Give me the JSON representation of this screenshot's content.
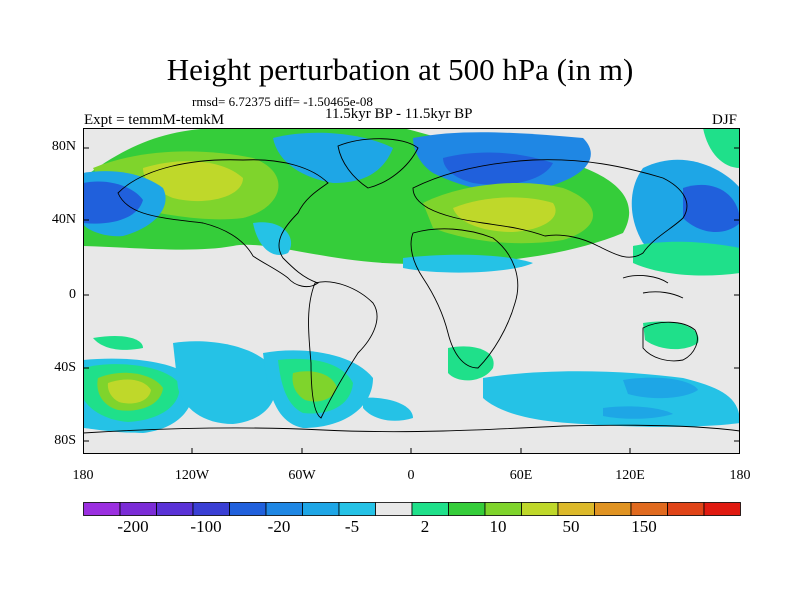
{
  "title": "Height perturbation at 500 hPa (in m)",
  "stats": "rmsd= 6.72375 diff= -1.50465e-08",
  "experiment": "Expt = temmM-temkM",
  "period": "11.5kyr BP - 11.5kyr BP",
  "season": "DJF",
  "map": {
    "projection": "cylindrical equidistant",
    "background_color": "#e8e8e8",
    "coastline_color": "#000000",
    "lat_ticks": [
      "80N",
      "40N",
      "0",
      "40S",
      "80S"
    ],
    "lon_ticks": [
      "180",
      "120W",
      "60W",
      "0",
      "60E",
      "120E",
      "180"
    ]
  },
  "colorbar": {
    "colors": [
      "#9b2fe0",
      "#7b2cd6",
      "#5a32d6",
      "#3a3fd4",
      "#2060dc",
      "#1f87e4",
      "#1ea6e6",
      "#25c2e6",
      "#e8e8e8",
      "#1fe08a",
      "#35cd3a",
      "#7fd42c",
      "#bfd82a",
      "#dcb92a",
      "#e09322",
      "#e06a1f",
      "#e04418",
      "#e01a10"
    ],
    "labels": [
      "-200",
      "-100",
      "-20",
      "-5",
      "2",
      "10",
      "50",
      "150"
    ]
  }
}
